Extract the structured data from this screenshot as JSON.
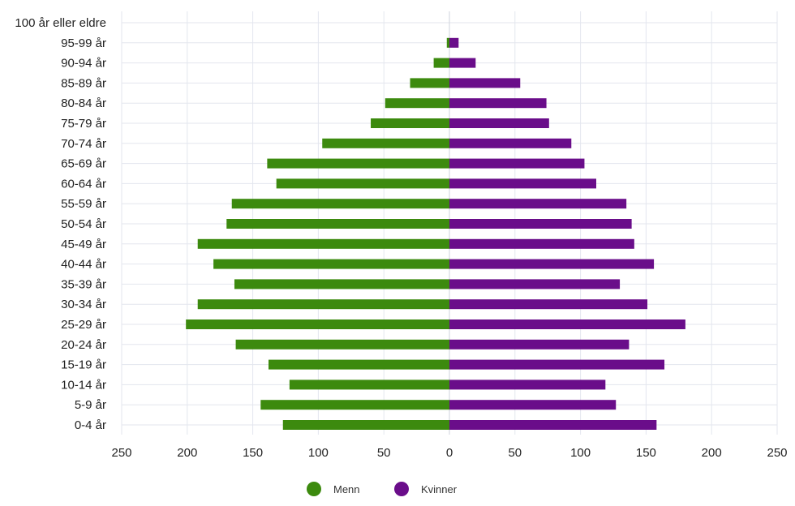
{
  "chart_data": {
    "type": "bar",
    "orientation": "horizontal-diverging",
    "categories": [
      "100 år eller eldre",
      "95-99 år",
      "90-94 år",
      "85-89 år",
      "80-84 år",
      "75-79 år",
      "70-74 år",
      "65-69 år",
      "60-64 år",
      "55-59 år",
      "50-54 år",
      "45-49 år",
      "40-44 år",
      "35-39 år",
      "30-34 år",
      "25-29 år",
      "20-24 år",
      "15-19 år",
      "10-14 år",
      "5-9 år",
      "0-4 år"
    ],
    "series": [
      {
        "name": "Menn",
        "color": "#3c8a0e",
        "direction": "left",
        "values": [
          0,
          2,
          12,
          30,
          49,
          60,
          97,
          139,
          132,
          166,
          170,
          192,
          180,
          164,
          192,
          201,
          163,
          138,
          122,
          144,
          127
        ]
      },
      {
        "name": "Kvinner",
        "color": "#6a0d8a",
        "direction": "right",
        "values": [
          0,
          7,
          20,
          54,
          74,
          76,
          93,
          103,
          112,
          135,
          139,
          141,
          156,
          130,
          151,
          180,
          137,
          164,
          119,
          127,
          158
        ]
      }
    ],
    "xticks": [
      "250",
      "200",
      "150",
      "100",
      "50",
      "0",
      "50",
      "100",
      "150",
      "200",
      "250"
    ],
    "xlim": [
      -250,
      250
    ],
    "grid": true,
    "legend_position": "bottom-center"
  },
  "legend": {
    "items": [
      {
        "label": "Menn",
        "color": "#3c8a0e"
      },
      {
        "label": "Kvinner",
        "color": "#6a0d8a"
      }
    ]
  }
}
